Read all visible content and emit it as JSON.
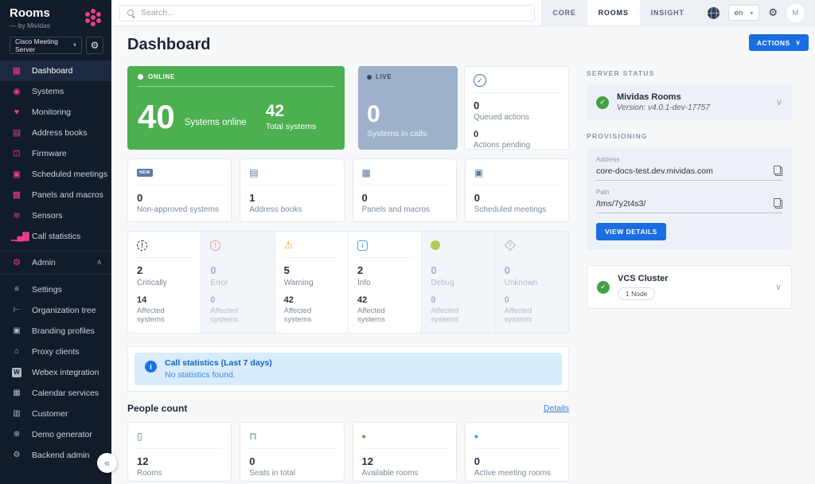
{
  "colors": {
    "brand_pink": "#ea3c8d",
    "online_green": "#4caf50",
    "live_blue_gray": "#9db1cb",
    "accent_blue": "#1a6ee0",
    "banner_blue": "#d9ecfb"
  },
  "glyphs": {
    "check": "✓",
    "chevron_down": "∨",
    "chevron_up": "∧",
    "select_caret": "▾",
    "collapse": "«",
    "info": "i",
    "gear": "⚙"
  },
  "brand": {
    "name": "Rooms",
    "byline": "— by Mividas"
  },
  "sidebar": {
    "server_select": {
      "value": "Cisco Meeting Server"
    },
    "items": [
      {
        "label": "Dashboard",
        "icon": "▦"
      },
      {
        "label": "Systems",
        "icon": "◉"
      },
      {
        "label": "Monitoring",
        "icon": "♥"
      },
      {
        "label": "Address books",
        "icon": "▤"
      },
      {
        "label": "Firmware",
        "icon": "⊡"
      },
      {
        "label": "Scheduled meetings",
        "icon": "▣"
      },
      {
        "label": "Panels and macros",
        "icon": "▩"
      },
      {
        "label": "Sensors",
        "icon": "≋"
      },
      {
        "label": "Call statistics",
        "icon": "▁▄▇"
      }
    ],
    "admin": {
      "label": "Admin",
      "icon": "⚙",
      "chevron": "∧",
      "items": [
        {
          "label": "Settings",
          "icon": "≡"
        },
        {
          "label": "Organization tree",
          "icon": "⊢"
        },
        {
          "label": "Branding profiles",
          "icon": "▣"
        },
        {
          "label": "Proxy clients",
          "icon": "⌂"
        },
        {
          "label": "Webex integration",
          "icon": "W"
        },
        {
          "label": "Calendar services",
          "icon": "▦"
        },
        {
          "label": "Customer",
          "icon": "▥"
        },
        {
          "label": "Demo generator",
          "icon": "⊕"
        },
        {
          "label": "Backend admin",
          "icon": "⚙"
        }
      ]
    },
    "collapse": "«"
  },
  "topbar": {
    "search_placeholder": "Search...",
    "tabs": [
      {
        "label": "CORE",
        "active": false
      },
      {
        "label": "ROOMS",
        "active": true
      },
      {
        "label": "INSIGHT",
        "active": false
      }
    ],
    "language": "en",
    "avatar": "M"
  },
  "page": {
    "title": "Dashboard",
    "actions_label": "ACTIONS"
  },
  "hero": {
    "online": {
      "badge": "ONLINE",
      "value": "40",
      "label": "Systems online",
      "total_value": "42",
      "total_label": "Total systems"
    },
    "live": {
      "badge": "LIVE",
      "value": "0",
      "label": "Systems in calls"
    },
    "queued": {
      "value": "0",
      "label": "Queued actions",
      "pending_value": "0",
      "pending_label": "Actions pending"
    }
  },
  "stat_cards": [
    {
      "value": "0",
      "label": "Non-approved systems",
      "icon_text": "NEW"
    },
    {
      "value": "1",
      "label": "Address books",
      "icon": "▤"
    },
    {
      "value": "0",
      "label": "Panels and macros",
      "icon": "▦"
    },
    {
      "value": "0",
      "label": "Scheduled meetings",
      "icon": "▣"
    }
  ],
  "severities": [
    {
      "value": "2",
      "label": "Critically",
      "icon": "!",
      "affected_value": "14",
      "affected_label": "Affected systems"
    },
    {
      "value": "0",
      "label": "Error",
      "icon": "!",
      "affected_value": "0",
      "affected_label": "Affected systems"
    },
    {
      "value": "5",
      "label": "Warning",
      "icon": "⚠",
      "affected_value": "42",
      "affected_label": "Affected systems"
    },
    {
      "value": "2",
      "label": "Info",
      "icon": "i",
      "affected_value": "42",
      "affected_label": "Affected systems"
    },
    {
      "value": "0",
      "label": "Debug",
      "icon": "",
      "affected_value": "0",
      "affected_label": "Affected systems"
    },
    {
      "value": "0",
      "label": "Unknown",
      "icon": "?",
      "affected_value": "0",
      "affected_label": "Affected systems"
    }
  ],
  "call_stats": {
    "title": "Call statistics (Last 7 days)",
    "message": "No statistics found."
  },
  "people": {
    "heading": "People count",
    "details": "Details",
    "cards": [
      {
        "value": "12",
        "label": "Rooms",
        "icon": "▯"
      },
      {
        "value": "0",
        "label": "Seats in total",
        "icon": "⊓"
      },
      {
        "value": "12",
        "label": "Available rooms",
        "icon": "●"
      },
      {
        "value": "0",
        "label": "Active meeting rooms",
        "icon": "●"
      }
    ]
  },
  "panel": {
    "server_status_heading": "SERVER STATUS",
    "server": {
      "name": "Mividas Rooms",
      "version": "Version: v4.0.1-dev-17757"
    },
    "provisioning_heading": "PROVISIONING",
    "address_label": "Address",
    "address_value": "core-docs-test.dev.mividas.com",
    "path_label": "Path",
    "path_value": "/tms/7y2t4s3/",
    "view_details_label": "VIEW DETAILS",
    "cluster": {
      "name": "VCS Cluster",
      "node_badge": "1 Node"
    }
  }
}
